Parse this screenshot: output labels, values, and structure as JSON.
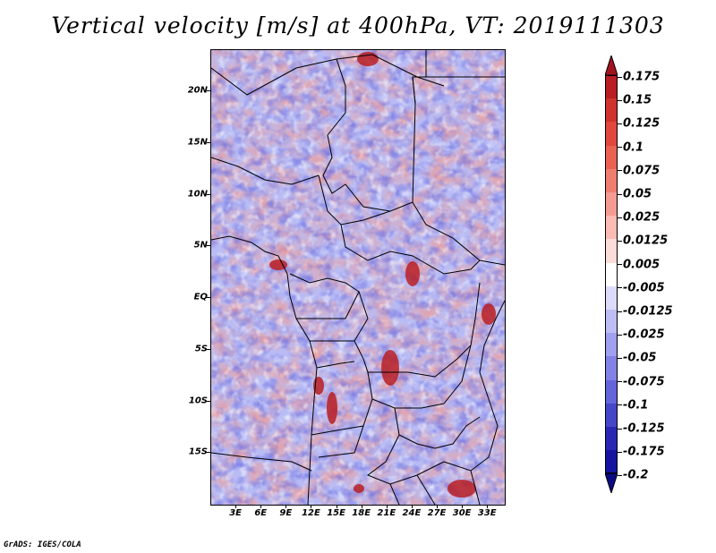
{
  "title": "Vertical velocity [m/s] at 400hPa, VT: 2019111303",
  "footer": "GrADS: IGES/COLA",
  "map": {
    "lat_range": [
      -20,
      24
    ],
    "lon_range": [
      0,
      35
    ],
    "lat_labels": [
      "20N",
      "15N",
      "10N",
      "5N",
      "EQ",
      "5S",
      "10S",
      "15S"
    ],
    "lat_values": [
      20,
      15,
      10,
      5,
      0,
      -5,
      -10,
      -15
    ],
    "lon_labels": [
      "3E",
      "6E",
      "9E",
      "12E",
      "15E",
      "18E",
      "21E",
      "24E",
      "27E",
      "30E",
      "33E"
    ],
    "lon_values": [
      3,
      6,
      9,
      12,
      15,
      18,
      21,
      24,
      27,
      30,
      33
    ]
  },
  "colorbar": {
    "labels": [
      "0.175",
      "0.15",
      "0.125",
      "0.1",
      "0.075",
      "0.05",
      "0.025",
      "0.0125",
      "0.005",
      "-0.005",
      "-0.0125",
      "-0.025",
      "-0.05",
      "-0.075",
      "-0.1",
      "-0.125",
      "-0.175",
      "-0.2"
    ],
    "colors": [
      "#a0141e",
      "#b81e23",
      "#d0322d",
      "#e0473d",
      "#ea6252",
      "#f07e70",
      "#f59c92",
      "#f9bbb4",
      "#fcdcd8",
      "#ffffff",
      "#dcdcfa",
      "#bebef5",
      "#a0a0f0",
      "#8282e6",
      "#6464dc",
      "#4646c8",
      "#2828b4",
      "#1414a0",
      "#0a0a82"
    ]
  }
}
